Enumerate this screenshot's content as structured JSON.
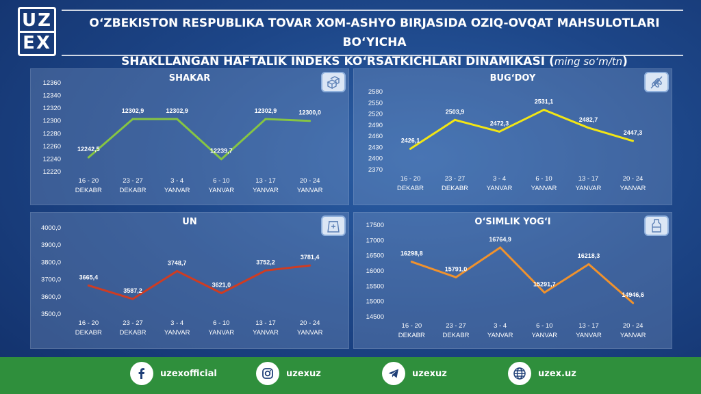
{
  "logo": {
    "line1": "UZ",
    "line2": "EX"
  },
  "header": {
    "title_line1": "O‘ZBEKISTON RESPUBLIKA TOVAR XOM-ASHYO BIRJASIDA OZIQ-OVQAT MAHSULOTLARI BO‘YICHA",
    "title_line2": "SHAKLLANGAN HAFTALIK INDEKS KO‘RSATKICHLARI DINAMIKASI",
    "unit": "ming so‘m/tn"
  },
  "chart_data": [
    {
      "type": "line",
      "title": "SHAKAR",
      "color": "#86c543",
      "categories": [
        [
          "16  -  20",
          "DEKABR"
        ],
        [
          "23  -  27",
          "DEKABR"
        ],
        [
          "3  -  4",
          "YANVAR"
        ],
        [
          "6  -  10",
          "YANVAR"
        ],
        [
          "13  -  17",
          "YANVAR"
        ],
        [
          "20  -  24",
          "YANVAR"
        ]
      ],
      "values": [
        12242.5,
        12302.9,
        12302.9,
        12239.7,
        12302.9,
        12300.0
      ],
      "labels": [
        "12242,5",
        "12302,9",
        "12302,9",
        "12239,7",
        "12302,9",
        "12300,0"
      ],
      "ylim": [
        12220,
        12360
      ],
      "yticks": [
        "12220",
        "12240",
        "12260",
        "12280",
        "12300",
        "12320",
        "12340",
        "12360"
      ],
      "ytick_values": [
        12220,
        12240,
        12260,
        12280,
        12300,
        12320,
        12340,
        12360
      ]
    },
    {
      "type": "line",
      "title": "BUG‘DOY",
      "color": "#f2e614",
      "categories": [
        [
          "16  -  20",
          "DEKABR"
        ],
        [
          "23  -  27",
          "DEKABR"
        ],
        [
          "3  -  4",
          "YANVAR"
        ],
        [
          "6  -  10",
          "YANVAR"
        ],
        [
          "13  -  17",
          "YANVAR"
        ],
        [
          "20  -  24",
          "YANVAR"
        ]
      ],
      "values": [
        2426.1,
        2503.9,
        2472.3,
        2531.1,
        2482.7,
        2447.3
      ],
      "labels": [
        "2426,1",
        "2503,9",
        "2472,3",
        "2531,1",
        "2482,7",
        "2447,3"
      ],
      "ylim": [
        2370,
        2580
      ],
      "yticks": [
        "2370",
        "2400",
        "2430",
        "2460",
        "2490",
        "2520",
        "2550",
        "2580"
      ],
      "ytick_values": [
        2370,
        2400,
        2430,
        2460,
        2490,
        2520,
        2550,
        2580
      ]
    },
    {
      "type": "line",
      "title": "UN",
      "color": "#cf3c22",
      "categories": [
        [
          "16  -  20",
          "DEKABR"
        ],
        [
          "23  -  27",
          "DEKABR"
        ],
        [
          "3  -  4",
          "YANVAR"
        ],
        [
          "6  -  10",
          "YANVAR"
        ],
        [
          "13  -  17",
          "YANVAR"
        ],
        [
          "20  -  24",
          "YANVAR"
        ]
      ],
      "values": [
        3665.4,
        3587.2,
        3748.7,
        3621.0,
        3752.2,
        3781.4
      ],
      "labels": [
        "3665,4",
        "3587,2",
        "3748,7",
        "3621,0",
        "3752,2",
        "3781,4"
      ],
      "ylim": [
        3500,
        4000
      ],
      "yticks": [
        "3500,0",
        "3600,0",
        "3700,0",
        "3800,0",
        "3900,0",
        "4000,0"
      ],
      "ytick_values": [
        3500,
        3600,
        3700,
        3800,
        3900,
        4000
      ]
    },
    {
      "type": "line",
      "title": "O‘SIMLIK YOG‘I",
      "color": "#f0922d",
      "categories": [
        [
          "16  -  20",
          "DEKABR"
        ],
        [
          "23  -  27",
          "DEKABR"
        ],
        [
          "3  -  4",
          "YANVAR"
        ],
        [
          "6  -  10",
          "YANVAR"
        ],
        [
          "13  -  17",
          "YANVAR"
        ],
        [
          "20  -  24",
          "YANVAR"
        ]
      ],
      "values": [
        16298.8,
        15791.0,
        16764.9,
        15291.7,
        16218.3,
        14946.6
      ],
      "labels": [
        "16298,8",
        "15791,0",
        "16764,9",
        "15291,7",
        "16218,3",
        "14946,6"
      ],
      "ylim": [
        14500,
        17500
      ],
      "yticks": [
        "14500",
        "15000",
        "15500",
        "16000",
        "16500",
        "17000",
        "17500"
      ],
      "ytick_values": [
        14500,
        15000,
        15500,
        16000,
        16500,
        17000,
        17500
      ]
    }
  ],
  "icons": [
    "sugar-cubes-icon",
    "wheat-icon",
    "flour-bag-icon",
    "oil-bottle-icon"
  ],
  "footer": {
    "facebook": "uzexofficial",
    "instagram": "uzexuz",
    "telegram": "uzexuz",
    "website": "uzex.uz"
  }
}
